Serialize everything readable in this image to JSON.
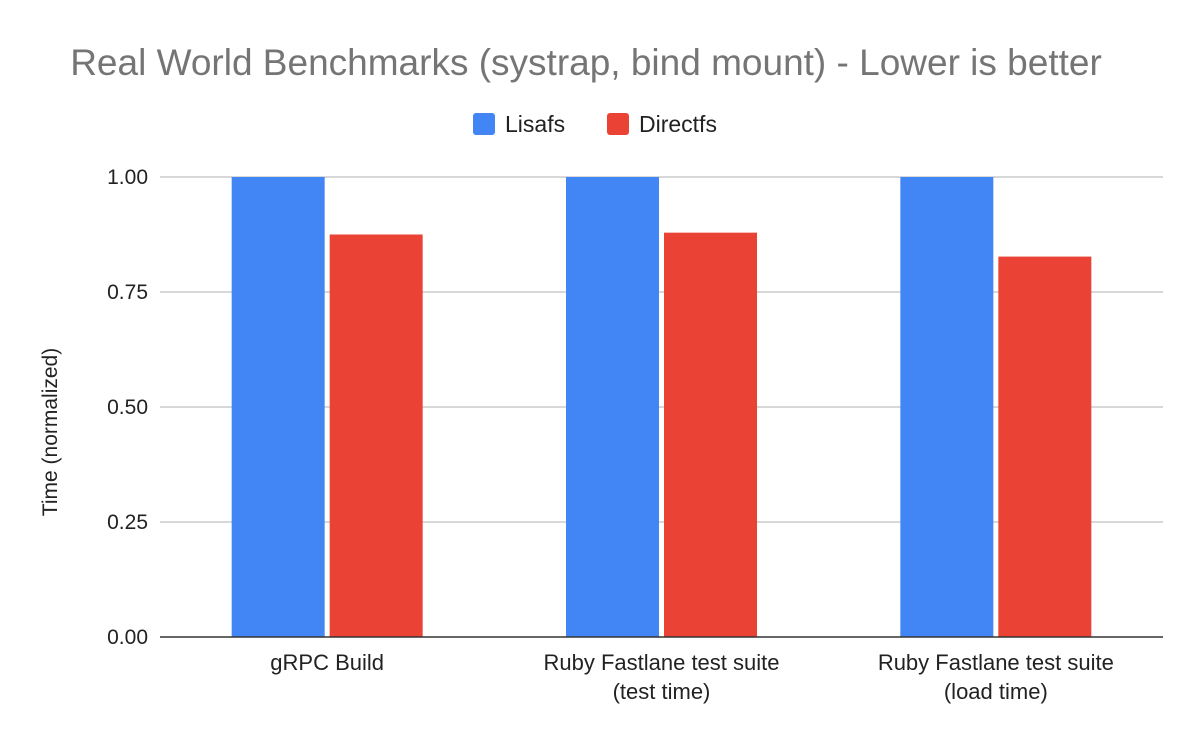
{
  "chart_data": {
    "type": "bar",
    "title": "Real World Benchmarks (systrap, bind mount) - Lower is better",
    "xlabel": "",
    "ylabel": "Time (normalized)",
    "ylim": [
      0,
      1.0
    ],
    "yticks": [
      "0.00",
      "0.25",
      "0.50",
      "0.75",
      "1.00"
    ],
    "grid": true,
    "legend_position": "top-center",
    "categories": [
      [
        "gRPC Build"
      ],
      [
        "Ruby Fastlane test suite",
        "(test time)"
      ],
      [
        "Ruby Fastlane test suite",
        "(load time)"
      ]
    ],
    "series": [
      {
        "name": "Lisafs",
        "color": "#4285f4",
        "values": [
          1.0,
          1.0,
          1.0
        ]
      },
      {
        "name": "Directfs",
        "color": "#ea4335",
        "values": [
          0.875,
          0.879,
          0.827
        ]
      }
    ]
  }
}
